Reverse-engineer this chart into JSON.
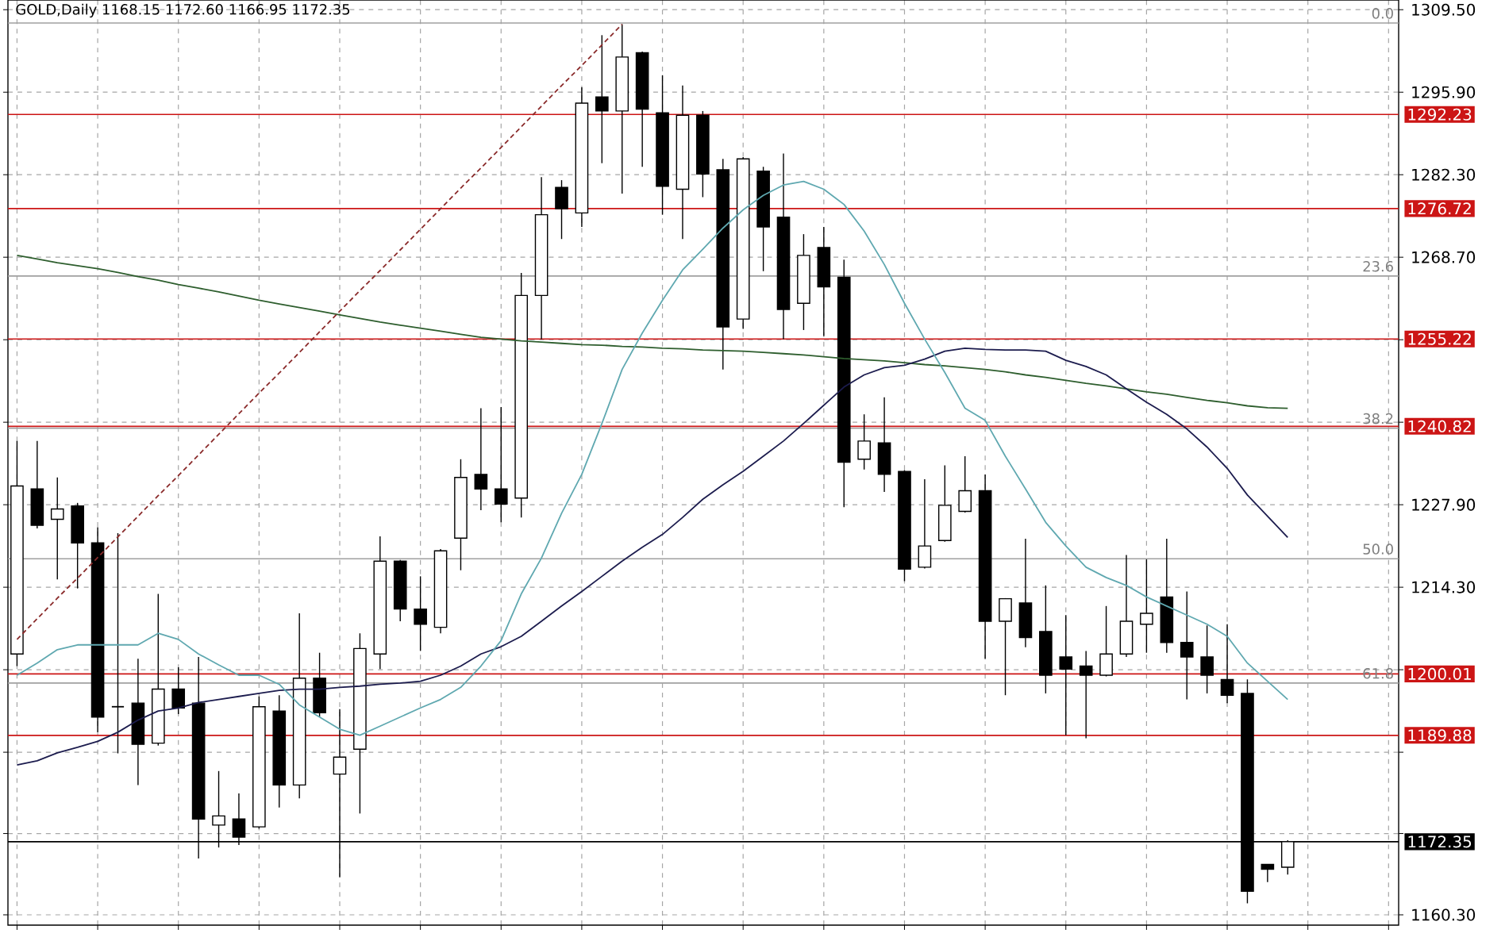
{
  "chart_data": {
    "type": "candlestick",
    "title": "GOLD,Daily  1168.15 1172.60 1166.95 1172.35",
    "categories": [
      null,
      null,
      null,
      null,
      null,
      null,
      null,
      null,
      null,
      null,
      null,
      null,
      null,
      null,
      null,
      null,
      null,
      null,
      null,
      null,
      null,
      null,
      null,
      null,
      null,
      null,
      null,
      null,
      null,
      null,
      null,
      null,
      null,
      null,
      null,
      null,
      null,
      null,
      null,
      null,
      null,
      null,
      null,
      null,
      null,
      null,
      null,
      null,
      null,
      null,
      null,
      null,
      null,
      null,
      null,
      null,
      null,
      null,
      null,
      null,
      null,
      null,
      null,
      null
    ],
    "ohlc": [
      [
        1203.3,
        1238.4,
        1201.3,
        1231.0
      ],
      [
        1230.5,
        1238.4,
        1224.0,
        1224.5
      ],
      [
        1225.5,
        1232.4,
        1215.6,
        1227.2
      ],
      [
        1227.7,
        1228.2,
        1214.1,
        1221.6
      ],
      [
        1221.6,
        1224.2,
        1190.4,
        1192.9
      ],
      [
        1194.6,
        1223.2,
        1186.9,
        1194.6
      ],
      [
        1195.2,
        1202.5,
        1181.7,
        1188.4
      ],
      [
        1188.6,
        1213.2,
        1188.2,
        1197.5
      ],
      [
        1197.5,
        1201.1,
        1193.4,
        1194.4
      ],
      [
        1195.2,
        1202.8,
        1169.6,
        1176.1
      ],
      [
        1175.1,
        1184.0,
        1171.4,
        1176.6
      ],
      [
        1176.1,
        1180.3,
        1171.8,
        1173.1
      ],
      [
        1174.8,
        1196.3,
        1174.5,
        1194.6
      ],
      [
        1193.9,
        1196.5,
        1178.0,
        1181.7
      ],
      [
        1181.7,
        1210.0,
        1179.5,
        1199.3
      ],
      [
        1199.3,
        1203.5,
        1192.9,
        1193.6
      ],
      [
        1183.5,
        1194.2,
        1166.5,
        1186.3
      ],
      [
        1187.6,
        1206.7,
        1177.0,
        1204.2
      ],
      [
        1203.3,
        1222.7,
        1200.8,
        1218.6
      ],
      [
        1218.6,
        1218.8,
        1208.7,
        1210.7
      ],
      [
        1210.7,
        1216.1,
        1203.8,
        1208.2
      ],
      [
        1207.7,
        1220.6,
        1206.7,
        1220.3
      ],
      [
        1222.4,
        1235.4,
        1217.1,
        1232.4
      ],
      [
        1232.9,
        1243.8,
        1227.0,
        1230.5
      ],
      [
        1230.5,
        1244.0,
        1225.0,
        1228.0
      ],
      [
        1229.0,
        1266.1,
        1225.8,
        1262.4
      ],
      [
        1262.4,
        1281.9,
        1255.2,
        1275.7
      ],
      [
        1280.2,
        1281.4,
        1271.7,
        1276.7
      ],
      [
        1276.0,
        1296.7,
        1273.7,
        1294.1
      ],
      [
        1295.1,
        1305.3,
        1284.2,
        1292.8
      ],
      [
        1292.8,
        1307.1,
        1279.2,
        1301.7
      ],
      [
        1302.4,
        1302.6,
        1283.6,
        1293.1
      ],
      [
        1292.5,
        1298.7,
        1275.7,
        1280.4
      ],
      [
        1279.9,
        1297.0,
        1271.7,
        1292.1
      ],
      [
        1292.1,
        1292.8,
        1278.6,
        1282.4
      ],
      [
        1283.1,
        1284.9,
        1250.2,
        1257.2
      ],
      [
        1258.5,
        1285.2,
        1256.9,
        1284.9
      ],
      [
        1282.9,
        1283.6,
        1266.4,
        1273.7
      ],
      [
        1275.3,
        1285.8,
        1255.2,
        1260.1
      ],
      [
        1261.1,
        1272.5,
        1256.7,
        1269.0
      ],
      [
        1270.3,
        1273.7,
        1255.7,
        1263.8
      ],
      [
        1265.4,
        1268.3,
        1227.5,
        1234.9
      ],
      [
        1235.4,
        1242.8,
        1233.7,
        1238.4
      ],
      [
        1238.1,
        1245.6,
        1230.0,
        1232.9
      ],
      [
        1233.4,
        1233.6,
        1215.3,
        1217.3
      ],
      [
        1217.6,
        1232.1,
        1217.4,
        1221.1
      ],
      [
        1222.0,
        1234.4,
        1221.8,
        1227.8
      ],
      [
        1226.8,
        1235.9,
        1226.6,
        1230.2
      ],
      [
        1230.2,
        1232.9,
        1202.5,
        1208.7
      ],
      [
        1208.7,
        1212.5,
        1196.5,
        1212.4
      ],
      [
        1211.7,
        1222.3,
        1204.4,
        1206.0
      ],
      [
        1207.0,
        1214.6,
        1196.8,
        1199.8
      ],
      [
        1202.8,
        1209.7,
        1189.9,
        1200.8
      ],
      [
        1201.3,
        1203.8,
        1189.4,
        1199.8
      ],
      [
        1199.8,
        1211.2,
        1199.6,
        1203.3
      ],
      [
        1203.3,
        1219.6,
        1202.8,
        1208.7
      ],
      [
        1208.2,
        1218.9,
        1203.5,
        1210.0
      ],
      [
        1212.7,
        1222.3,
        1203.5,
        1205.2
      ],
      [
        1205.2,
        1213.6,
        1195.8,
        1202.8
      ],
      [
        1202.8,
        1208.0,
        1196.8,
        1199.8
      ],
      [
        1199.1,
        1208.2,
        1195.2,
        1196.5
      ],
      [
        1196.8,
        1199.1,
        1162.2,
        1164.2
      ],
      [
        1168.6,
        1168.6,
        1165.7,
        1167.8
      ],
      [
        1168.15,
        1172.6,
        1166.95,
        1172.35
      ]
    ],
    "series": [
      {
        "type": "line",
        "color": "#2e5e2e",
        "values": [
          1269.0,
          1268.4,
          1267.8,
          1267.3,
          1266.8,
          1266.2,
          1265.5,
          1264.9,
          1264.2,
          1263.6,
          1263.0,
          1262.3,
          1261.6,
          1261.0,
          1260.4,
          1259.8,
          1259.2,
          1258.6,
          1258.0,
          1257.5,
          1257.0,
          1256.5,
          1256.0,
          1255.5,
          1255.2,
          1254.9,
          1254.7,
          1254.5,
          1254.3,
          1254.2,
          1254.0,
          1253.9,
          1253.7,
          1253.6,
          1253.4,
          1253.3,
          1253.2,
          1253.0,
          1252.8,
          1252.6,
          1252.3,
          1252.0,
          1251.8,
          1251.6,
          1251.3,
          1251.0,
          1250.8,
          1250.5,
          1250.2,
          1249.8,
          1249.3,
          1248.9,
          1248.4,
          1247.9,
          1247.5,
          1247.0,
          1246.5,
          1246.1,
          1245.6,
          1245.1,
          1244.7,
          1244.2,
          1243.9,
          1243.8
        ]
      },
      {
        "type": "line",
        "color": "#1c1c4e",
        "values": [
          1185.0,
          1185.7,
          1187.0,
          1187.9,
          1188.9,
          1190.4,
          1192.4,
          1193.9,
          1194.4,
          1195.3,
          1195.8,
          1196.3,
          1196.8,
          1197.3,
          1197.5,
          1197.5,
          1197.8,
          1198.0,
          1198.3,
          1198.5,
          1198.8,
          1199.8,
          1201.3,
          1203.3,
          1204.5,
          1206.2,
          1208.7,
          1211.2,
          1213.6,
          1216.1,
          1218.6,
          1220.9,
          1223.0,
          1225.8,
          1228.8,
          1231.2,
          1233.4,
          1235.9,
          1238.4,
          1241.3,
          1244.3,
          1247.3,
          1249.3,
          1250.5,
          1250.9,
          1251.9,
          1253.2,
          1253.7,
          1253.5,
          1253.4,
          1253.4,
          1253.2,
          1251.7,
          1250.7,
          1249.3,
          1247.0,
          1244.8,
          1242.8,
          1240.4,
          1237.4,
          1233.9,
          1229.5,
          1226.0,
          1222.5
        ]
      },
      {
        "type": "line",
        "color": "#5fa8b0",
        "values": [
          1199.8,
          1201.8,
          1204.0,
          1204.8,
          1204.8,
          1204.8,
          1204.8,
          1206.7,
          1205.7,
          1203.3,
          1201.5,
          1199.8,
          1199.8,
          1198.3,
          1194.9,
          1192.9,
          1190.9,
          1189.9,
          1191.4,
          1192.9,
          1194.4,
          1195.8,
          1197.8,
          1201.3,
          1205.5,
          1213.2,
          1219.1,
          1226.5,
          1232.9,
          1241.3,
          1250.2,
          1256.2,
          1261.6,
          1266.6,
          1270.0,
          1273.5,
          1276.5,
          1278.9,
          1280.6,
          1281.2,
          1279.9,
          1277.4,
          1273.0,
          1267.5,
          1261.1,
          1255.2,
          1249.7,
          1243.8,
          1241.8,
          1235.9,
          1230.5,
          1225.0,
          1221.1,
          1217.6,
          1215.9,
          1214.6,
          1212.7,
          1211.2,
          1209.7,
          1208.2,
          1206.2,
          1201.8,
          1198.8,
          1195.8
        ]
      },
      {
        "type": "line",
        "color": "#8a2a2a",
        "line_style": "dashed",
        "values": [
          1205.7,
          1209.1,
          1212.5,
          1215.8,
          1219.2,
          1222.6,
          1226.0,
          1229.4,
          1232.7,
          1236.1,
          1239.5,
          1242.9,
          1246.3,
          1249.6,
          1253.0,
          1256.4,
          1259.8,
          1263.2,
          1266.5,
          1269.9,
          1273.3,
          1276.7,
          1280.1,
          1283.4,
          1286.8,
          1290.2,
          1293.6,
          1297.0,
          1300.3,
          1303.7,
          1307.1,
          null,
          null,
          null,
          null,
          null,
          null,
          null,
          null,
          null,
          null,
          null,
          null,
          null,
          null,
          null,
          null,
          null,
          null,
          null,
          null,
          null,
          null,
          null,
          null,
          null,
          null,
          null,
          null,
          null,
          null,
          null,
          null,
          null
        ]
      }
    ],
    "ylim": [
      1158.6,
      1311.1
    ],
    "yticks": [
      {
        "value": 1309.5,
        "label": "1309.50"
      },
      {
        "value": 1295.9,
        "label": "1295.90"
      },
      {
        "value": 1282.3,
        "label": "1282.30"
      },
      {
        "value": 1268.7,
        "label": "1268.70"
      },
      {
        "value": 1255.1,
        "label": null
      },
      {
        "value": 1241.5,
        "label": null
      },
      {
        "value": 1227.9,
        "label": "1227.90"
      },
      {
        "value": 1214.3,
        "label": "1214.30"
      },
      {
        "value": 1200.7,
        "label": null
      },
      {
        "value": 1187.1,
        "label": null
      },
      {
        "value": 1173.7,
        "label": null
      },
      {
        "value": 1160.3,
        "label": "1160.30"
      }
    ],
    "ref_lines": [
      {
        "axis": "y",
        "value": 1292.23,
        "label": "1292.23",
        "color": "#cc1515"
      },
      {
        "axis": "y",
        "value": 1276.72,
        "label": "1276.72",
        "color": "#cc1515"
      },
      {
        "axis": "y",
        "value": 1255.22,
        "label": "1255.22",
        "color": "#cc1515"
      },
      {
        "axis": "y",
        "value": 1240.82,
        "label": "1240.82",
        "color": "#cc1515"
      },
      {
        "axis": "y",
        "value": 1200.01,
        "label": "1200.01",
        "color": "#cc1515"
      },
      {
        "axis": "y",
        "value": 1189.88,
        "label": "1189.88",
        "color": "#cc1515"
      },
      {
        "axis": "y",
        "value": 1172.35,
        "label": "1172.35",
        "color": "#000000"
      },
      {
        "axis": "y",
        "value": 1307.3,
        "color": "#a0a0a0"
      },
      {
        "axis": "y",
        "value": 1265.6,
        "color": "#a0a0a0"
      },
      {
        "axis": "y",
        "value": 1240.5,
        "color": "#a0a0a0"
      },
      {
        "axis": "y",
        "value": 1219.0,
        "color": "#a0a0a0"
      },
      {
        "axis": "y",
        "value": 1198.5,
        "color": "#a0a0a0"
      }
    ],
    "annotations": [
      {
        "text": "0.0",
        "y": 1307.3
      },
      {
        "text": "23.6",
        "y": 1265.6
      },
      {
        "text": "38.2",
        "y": 1240.5
      },
      {
        "text": "50.0",
        "y": 1219.0
      },
      {
        "text": "61.8",
        "y": 1198.5
      }
    ],
    "grid": true,
    "tick_labels": "y"
  }
}
